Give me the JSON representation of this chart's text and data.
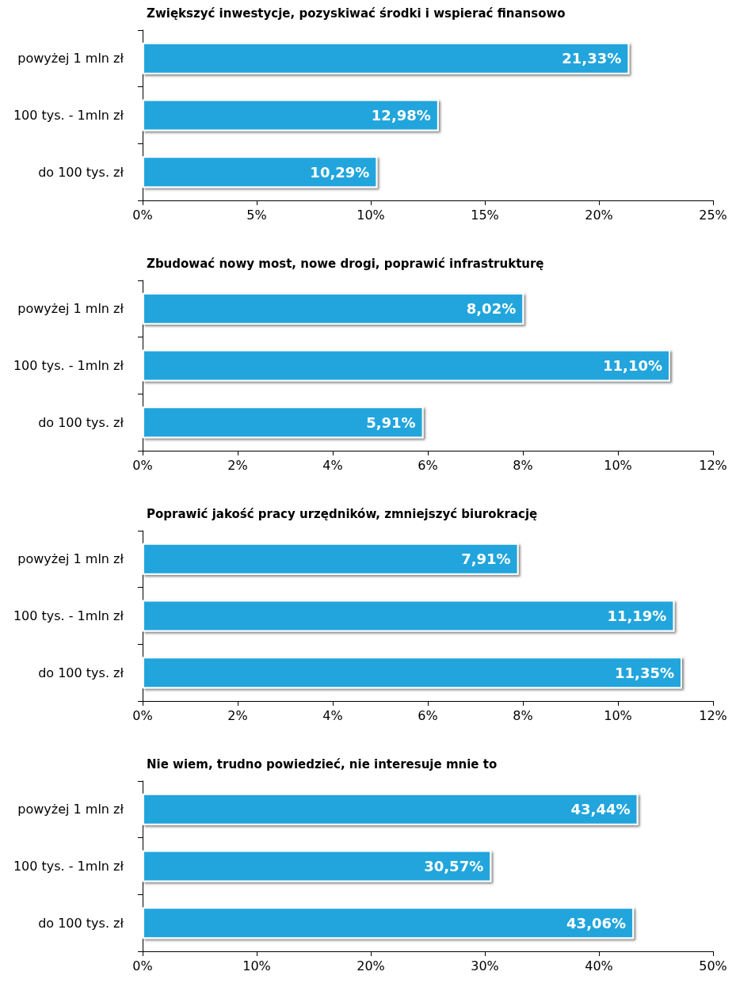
{
  "chart_data": [
    {
      "type": "bar",
      "orientation": "horizontal",
      "title": "Zwiększyć inwestycje, pozyskiwać środki i wspierać finansowo",
      "categories": [
        "powyżej 1 mln zł",
        "100 tys. - 1mln zł",
        "do 100 tys. zł"
      ],
      "values": [
        21.33,
        12.98,
        10.29
      ],
      "value_labels": [
        "21,33%",
        "12,98%",
        "10,29%"
      ],
      "color": "#22a5dc",
      "xlim": [
        0,
        25
      ],
      "xticks": [
        {
          "value": 0,
          "label": "0%"
        },
        {
          "value": 5,
          "label": "5%"
        },
        {
          "value": 10,
          "label": "10%"
        },
        {
          "value": 15,
          "label": "15%"
        },
        {
          "value": 20,
          "label": "20%"
        },
        {
          "value": 25,
          "label": "25%"
        }
      ],
      "grid": false
    },
    {
      "type": "bar",
      "orientation": "horizontal",
      "title": "Zbudować nowy most, nowe drogi, poprawić infrastrukturę",
      "categories": [
        "powyżej 1 mln zł",
        "100 tys. - 1mln zł",
        "do 100 tys. zł"
      ],
      "values": [
        8.02,
        11.1,
        5.91
      ],
      "value_labels": [
        "8,02%",
        "11,10%",
        "5,91%"
      ],
      "color": "#22a5dc",
      "xlim": [
        0,
        12
      ],
      "xticks": [
        {
          "value": 0,
          "label": "0%"
        },
        {
          "value": 2,
          "label": "2%"
        },
        {
          "value": 4,
          "label": "4%"
        },
        {
          "value": 6,
          "label": "6%"
        },
        {
          "value": 8,
          "label": "8%"
        },
        {
          "value": 10,
          "label": "10%"
        },
        {
          "value": 12,
          "label": "12%"
        }
      ],
      "grid": false
    },
    {
      "type": "bar",
      "orientation": "horizontal",
      "title": "Poprawić jakość pracy urzędników, zmniejszyć biurokrację",
      "categories": [
        "powyżej 1 mln zł",
        "100 tys. - 1mln zł",
        "do 100 tys. zł"
      ],
      "values": [
        7.91,
        11.19,
        11.35
      ],
      "value_labels": [
        "7,91%",
        "11,19%",
        "11,35%"
      ],
      "color": "#22a5dc",
      "xlim": [
        0,
        12
      ],
      "xticks": [
        {
          "value": 0,
          "label": "0%"
        },
        {
          "value": 2,
          "label": "2%"
        },
        {
          "value": 4,
          "label": "4%"
        },
        {
          "value": 6,
          "label": "6%"
        },
        {
          "value": 8,
          "label": "8%"
        },
        {
          "value": 10,
          "label": "10%"
        },
        {
          "value": 12,
          "label": "12%"
        }
      ],
      "grid": false
    },
    {
      "type": "bar",
      "orientation": "horizontal",
      "title": "Nie wiem, trudno powiedzieć, nie interesuje mnie to",
      "categories": [
        "powyżej 1 mln zł",
        "100 tys. - 1mln zł",
        "do 100 tys. zł"
      ],
      "values": [
        43.44,
        30.57,
        43.06
      ],
      "value_labels": [
        "43,44%",
        "30,57%",
        "43,06%"
      ],
      "color": "#22a5dc",
      "xlim": [
        0,
        50
      ],
      "xticks": [
        {
          "value": 0,
          "label": "0%"
        },
        {
          "value": 10,
          "label": "10%"
        },
        {
          "value": 20,
          "label": "20%"
        },
        {
          "value": 30,
          "label": "30%"
        },
        {
          "value": 40,
          "label": "40%"
        },
        {
          "value": 50,
          "label": "50%"
        }
      ],
      "grid": false
    }
  ]
}
